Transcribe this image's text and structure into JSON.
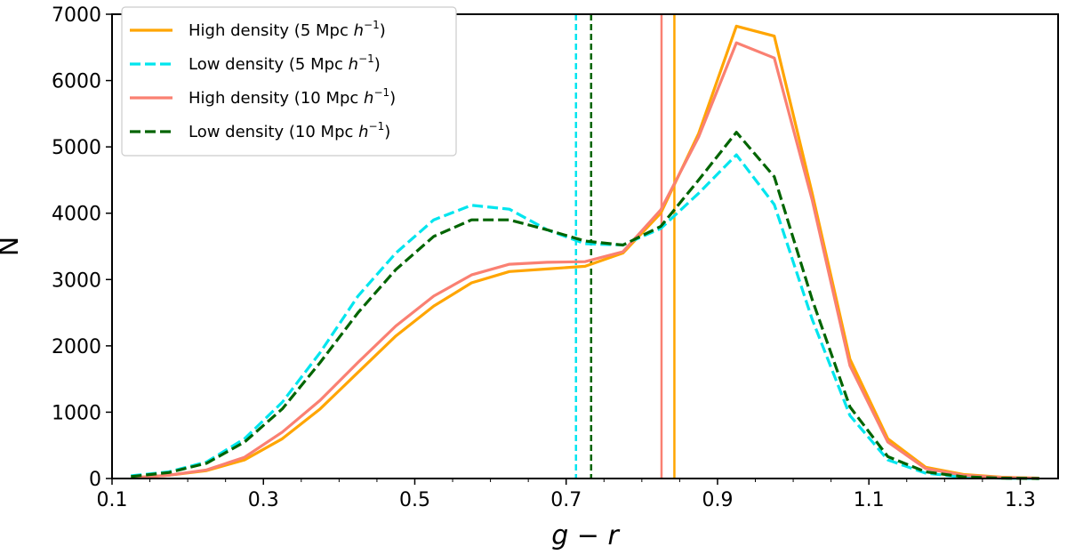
{
  "chart_data": {
    "type": "line",
    "title": "",
    "xlabel": "g − r",
    "ylabel": "N",
    "xlim": [
      0.1,
      1.35
    ],
    "ylim": [
      0,
      7000
    ],
    "xticks": [
      0.1,
      0.3,
      0.5,
      0.7,
      0.9,
      1.1,
      1.3
    ],
    "xtick_labels": [
      "0.1",
      "0.3",
      "0.5",
      "0.7",
      "0.9",
      "1.1",
      "1.3"
    ],
    "yticks": [
      0,
      1000,
      2000,
      3000,
      4000,
      5000,
      6000,
      7000
    ],
    "ytick_labels": [
      "0",
      "1000",
      "2000",
      "3000",
      "4000",
      "5000",
      "6000",
      "7000"
    ],
    "x": [
      0.125,
      0.175,
      0.225,
      0.275,
      0.325,
      0.375,
      0.425,
      0.475,
      0.525,
      0.575,
      0.625,
      0.675,
      0.725,
      0.775,
      0.825,
      0.875,
      0.925,
      0.975,
      1.025,
      1.075,
      1.125,
      1.175,
      1.225,
      1.275,
      1.325
    ],
    "series": [
      {
        "name": "High density (5 Mpc h⁻¹)",
        "legend_main": "High density (5 Mpc ",
        "legend_tail": ")",
        "color": "#FFA500",
        "dash": "solid",
        "values": [
          10,
          50,
          120,
          280,
          600,
          1050,
          1600,
          2150,
          2600,
          2950,
          3120,
          3160,
          3200,
          3400,
          4000,
          5200,
          6820,
          6670,
          4300,
          1800,
          600,
          170,
          60,
          20,
          5
        ]
      },
      {
        "name": "Low density (5 Mpc h⁻¹)",
        "legend_main": "Low density (5 Mpc ",
        "legend_tail": ")",
        "color": "#00E5EE",
        "dash": "dashed",
        "values": [
          40,
          100,
          250,
          600,
          1150,
          1900,
          2750,
          3400,
          3900,
          4120,
          4060,
          3750,
          3540,
          3520,
          3770,
          4300,
          4880,
          4130,
          2400,
          950,
          280,
          80,
          20,
          5,
          0
        ]
      },
      {
        "name": "High density (10 Mpc h⁻¹)",
        "legend_main": "High density (10 Mpc ",
        "legend_tail": ")",
        "color": "#FA8072",
        "dash": "solid",
        "values": [
          10,
          50,
          130,
          320,
          700,
          1180,
          1750,
          2300,
          2750,
          3070,
          3230,
          3260,
          3270,
          3420,
          4050,
          5150,
          6570,
          6340,
          4200,
          1700,
          550,
          150,
          50,
          15,
          5
        ]
      },
      {
        "name": "Low density (10 Mpc h⁻¹)",
        "legend_main": "Low density (10 Mpc ",
        "legend_tail": ")",
        "color": "#006400",
        "dash": "dashed",
        "values": [
          30,
          90,
          230,
          550,
          1050,
          1750,
          2500,
          3150,
          3650,
          3900,
          3900,
          3750,
          3580,
          3520,
          3800,
          4500,
          5220,
          4550,
          2700,
          1080,
          330,
          100,
          25,
          5,
          0
        ]
      }
    ],
    "vlines": [
      {
        "x": 0.713,
        "color": "#00E5EE",
        "dash": "dashed",
        "series": "Low density (5 Mpc h⁻¹)"
      },
      {
        "x": 0.733,
        "color": "#006400",
        "dash": "dashed",
        "series": "Low density (10 Mpc h⁻¹)"
      },
      {
        "x": 0.826,
        "color": "#FA8072",
        "dash": "solid",
        "series": "High density (10 Mpc h⁻¹)"
      },
      {
        "x": 0.843,
        "color": "#FFA500",
        "dash": "solid",
        "series": "High density (5 Mpc h⁻¹)"
      }
    ],
    "legend": {
      "position": "upper-left"
    }
  }
}
